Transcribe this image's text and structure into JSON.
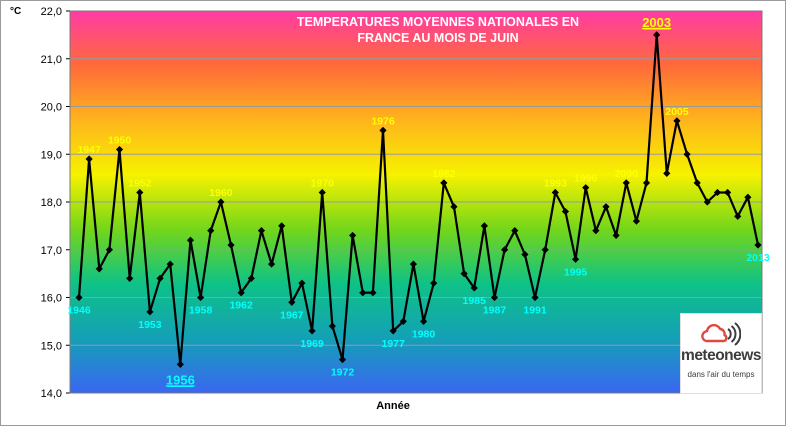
{
  "chart_data": {
    "type": "line",
    "title": [
      "TEMPERATURES MOYENNES NATIONALES EN",
      "FRANCE AU MOIS DE JUIN"
    ],
    "ylabel": "°C",
    "xlabel": "Année",
    "ylim": [
      14,
      22
    ],
    "yticks": [
      "14,0",
      "15,0",
      "16,0",
      "17,0",
      "18,0",
      "19,0",
      "20,0",
      "21,0",
      "22,0"
    ],
    "grid": true,
    "x": [
      1946,
      1947,
      1948,
      1949,
      1950,
      1951,
      1952,
      1953,
      1954,
      1955,
      1956,
      1957,
      1958,
      1959,
      1960,
      1961,
      1962,
      1963,
      1964,
      1965,
      1966,
      1967,
      1968,
      1969,
      1970,
      1971,
      1972,
      1973,
      1974,
      1975,
      1976,
      1977,
      1978,
      1979,
      1980,
      1981,
      1982,
      1983,
      1984,
      1985,
      1986,
      1987,
      1988,
      1989,
      1990,
      1991,
      1992,
      1993,
      1994,
      1995,
      1996,
      1997,
      1998,
      1999,
      2000,
      2001,
      2002,
      2003,
      2004,
      2005,
      2006,
      2007,
      2008,
      2009,
      2010,
      2011,
      2012,
      2013
    ],
    "values": [
      16.0,
      18.9,
      16.6,
      17.0,
      19.1,
      16.4,
      18.2,
      15.7,
      16.4,
      16.7,
      14.6,
      17.2,
      16.0,
      17.4,
      18.0,
      17.1,
      16.1,
      16.4,
      17.4,
      16.7,
      17.5,
      15.9,
      16.3,
      15.3,
      18.2,
      15.4,
      14.7,
      17.3,
      16.1,
      16.1,
      19.5,
      15.3,
      15.5,
      16.7,
      15.5,
      16.3,
      18.4,
      17.9,
      16.5,
      16.2,
      17.5,
      16.0,
      17.0,
      17.4,
      16.9,
      16.0,
      17.0,
      18.2,
      17.8,
      16.8,
      18.3,
      17.4,
      17.9,
      17.3,
      18.4,
      17.6,
      18.4,
      21.5,
      18.6,
      19.7,
      19.0,
      18.4,
      18.0,
      18.2,
      18.2,
      17.7,
      18.1,
      17.1
    ],
    "year_labels": [
      {
        "year": 1946,
        "text": "1946",
        "style": "cyan",
        "pos": "below"
      },
      {
        "year": 1947,
        "text": "1947",
        "style": "yellow",
        "pos": "above"
      },
      {
        "year": 1950,
        "text": "1950",
        "style": "yellow",
        "pos": "above"
      },
      {
        "year": 1952,
        "text": "1952",
        "style": "yellow",
        "pos": "above"
      },
      {
        "year": 1953,
        "text": "1953",
        "style": "cyan",
        "pos": "below"
      },
      {
        "year": 1956,
        "text": "1956",
        "style": "big-cyan",
        "pos": "below"
      },
      {
        "year": 1958,
        "text": "1958",
        "style": "cyan",
        "pos": "below"
      },
      {
        "year": 1960,
        "text": "1960",
        "style": "yellow",
        "pos": "above"
      },
      {
        "year": 1962,
        "text": "1962",
        "style": "cyan",
        "pos": "below"
      },
      {
        "year": 1967,
        "text": "1967",
        "style": "cyan",
        "pos": "below"
      },
      {
        "year": 1969,
        "text": "1969",
        "style": "cyan",
        "pos": "below"
      },
      {
        "year": 1970,
        "text": "1970",
        "style": "yellow",
        "pos": "above"
      },
      {
        "year": 1972,
        "text": "1972",
        "style": "cyan",
        "pos": "below"
      },
      {
        "year": 1976,
        "text": "1976",
        "style": "yellow",
        "pos": "above"
      },
      {
        "year": 1977,
        "text": "1977",
        "style": "cyan",
        "pos": "below"
      },
      {
        "year": 1980,
        "text": "1980",
        "style": "cyan",
        "pos": "below"
      },
      {
        "year": 1982,
        "text": "1982",
        "style": "yellow",
        "pos": "above"
      },
      {
        "year": 1985,
        "text": "1985",
        "style": "cyan",
        "pos": "below"
      },
      {
        "year": 1987,
        "text": "1987",
        "style": "cyan",
        "pos": "below"
      },
      {
        "year": 1991,
        "text": "1991",
        "style": "cyan",
        "pos": "below"
      },
      {
        "year": 1993,
        "text": "1993",
        "style": "yellow",
        "pos": "above"
      },
      {
        "year": 1995,
        "text": "1995",
        "style": "cyan",
        "pos": "below"
      },
      {
        "year": 1996,
        "text": "1996",
        "style": "yellow",
        "pos": "above"
      },
      {
        "year": 2000,
        "text": "2000",
        "style": "yellow",
        "pos": "above"
      },
      {
        "year": 2003,
        "text": "2003",
        "style": "big-yellow",
        "pos": "above"
      },
      {
        "year": 2005,
        "text": "2005",
        "style": "yellow",
        "pos": "above"
      },
      {
        "year": 2013,
        "text": "2013",
        "style": "cyan",
        "pos": "below"
      }
    ],
    "background_gradient": [
      "#ff3ba4",
      "#ff6a3a",
      "#ffb41c",
      "#f6f200",
      "#74d61a",
      "#0ec287",
      "#14a0b6",
      "#3a66f2"
    ],
    "line_color": "#000000",
    "grid_color": "#9a9a9a"
  },
  "logo": {
    "name": "meteonews",
    "tagline": "dans l'air du temps",
    "icon": "cloud-wifi-icon",
    "icon_color": "#e04a3e"
  }
}
